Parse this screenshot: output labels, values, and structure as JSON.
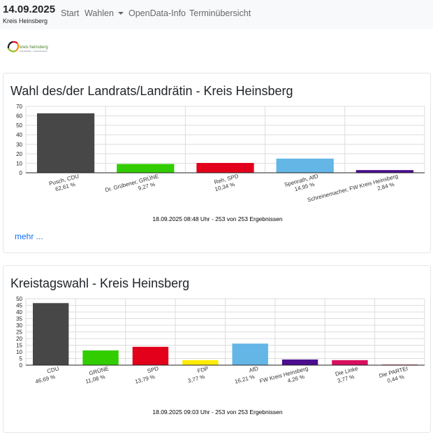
{
  "nav": {
    "date": "14.09.2025",
    "district": "Kreis Heinsberg",
    "links": [
      "Start",
      "Wahlen",
      "OpenData-Info",
      "Terminübersicht"
    ]
  },
  "logo": {
    "text": "kreis heinsberg",
    "tagline": "zukunftsfähig · vorausschauend"
  },
  "elections": [
    {
      "title": "Wahl des/der Landrats/Landrätin - Kreis Heinsberg",
      "status": "18.09.2025 08:48 Uhr - 253 von 253 Ergebnissen",
      "more": "mehr ..."
    },
    {
      "title": "Kreistagswahl - Kreis Heinsberg",
      "status": "18.09.2025 09:03 Uhr - 253 von 253 Ergebnissen"
    }
  ],
  "chart_data": [
    {
      "type": "bar",
      "title": "",
      "xlabel": "",
      "ylabel": "",
      "ylim": [
        0,
        70
      ],
      "yticks": [
        0,
        10,
        20,
        30,
        40,
        50,
        60,
        70
      ],
      "grid": true,
      "categories": [
        "Pusch, CDU",
        "Dr. Grübener, GRÜNE",
        "Reh, SPD",
        "Spenrath, AfD",
        "Schreinemacher, FW Kreis Heinsberg"
      ],
      "values": [
        62.61,
        9.27,
        10.34,
        14.95,
        2.84
      ],
      "value_labels": [
        "62,61 %",
        "9,27 %",
        "10,34 %",
        "14,95 %",
        "2,84 %"
      ],
      "colors": [
        "#474747",
        "#32cd00",
        "#e2001a",
        "#63b6e6",
        "#4b0e8f"
      ]
    },
    {
      "type": "bar",
      "title": "",
      "xlabel": "",
      "ylabel": "",
      "ylim": [
        0,
        50
      ],
      "yticks": [
        0,
        5,
        10,
        15,
        20,
        25,
        30,
        35,
        40,
        45,
        50
      ],
      "grid": true,
      "categories": [
        "CDU",
        "GRÜNE",
        "SPD",
        "FDP",
        "AfD",
        "FW Kreis Heinsberg",
        "Die Linke",
        "Die PARTEI"
      ],
      "values": [
        46.69,
        11.08,
        13.79,
        3.77,
        16.21,
        4.26,
        3.77,
        0.44
      ],
      "value_labels": [
        "46,69 %",
        "11,08 %",
        "13,79 %",
        "3,77 %",
        "16,21 %",
        "4,26 %",
        "3,77 %",
        "0,44 %"
      ],
      "colors": [
        "#474747",
        "#32cd00",
        "#e2001a",
        "#ffec00",
        "#63b6e6",
        "#4b0e8f",
        "#d80e5f",
        "#b5152b"
      ]
    }
  ]
}
